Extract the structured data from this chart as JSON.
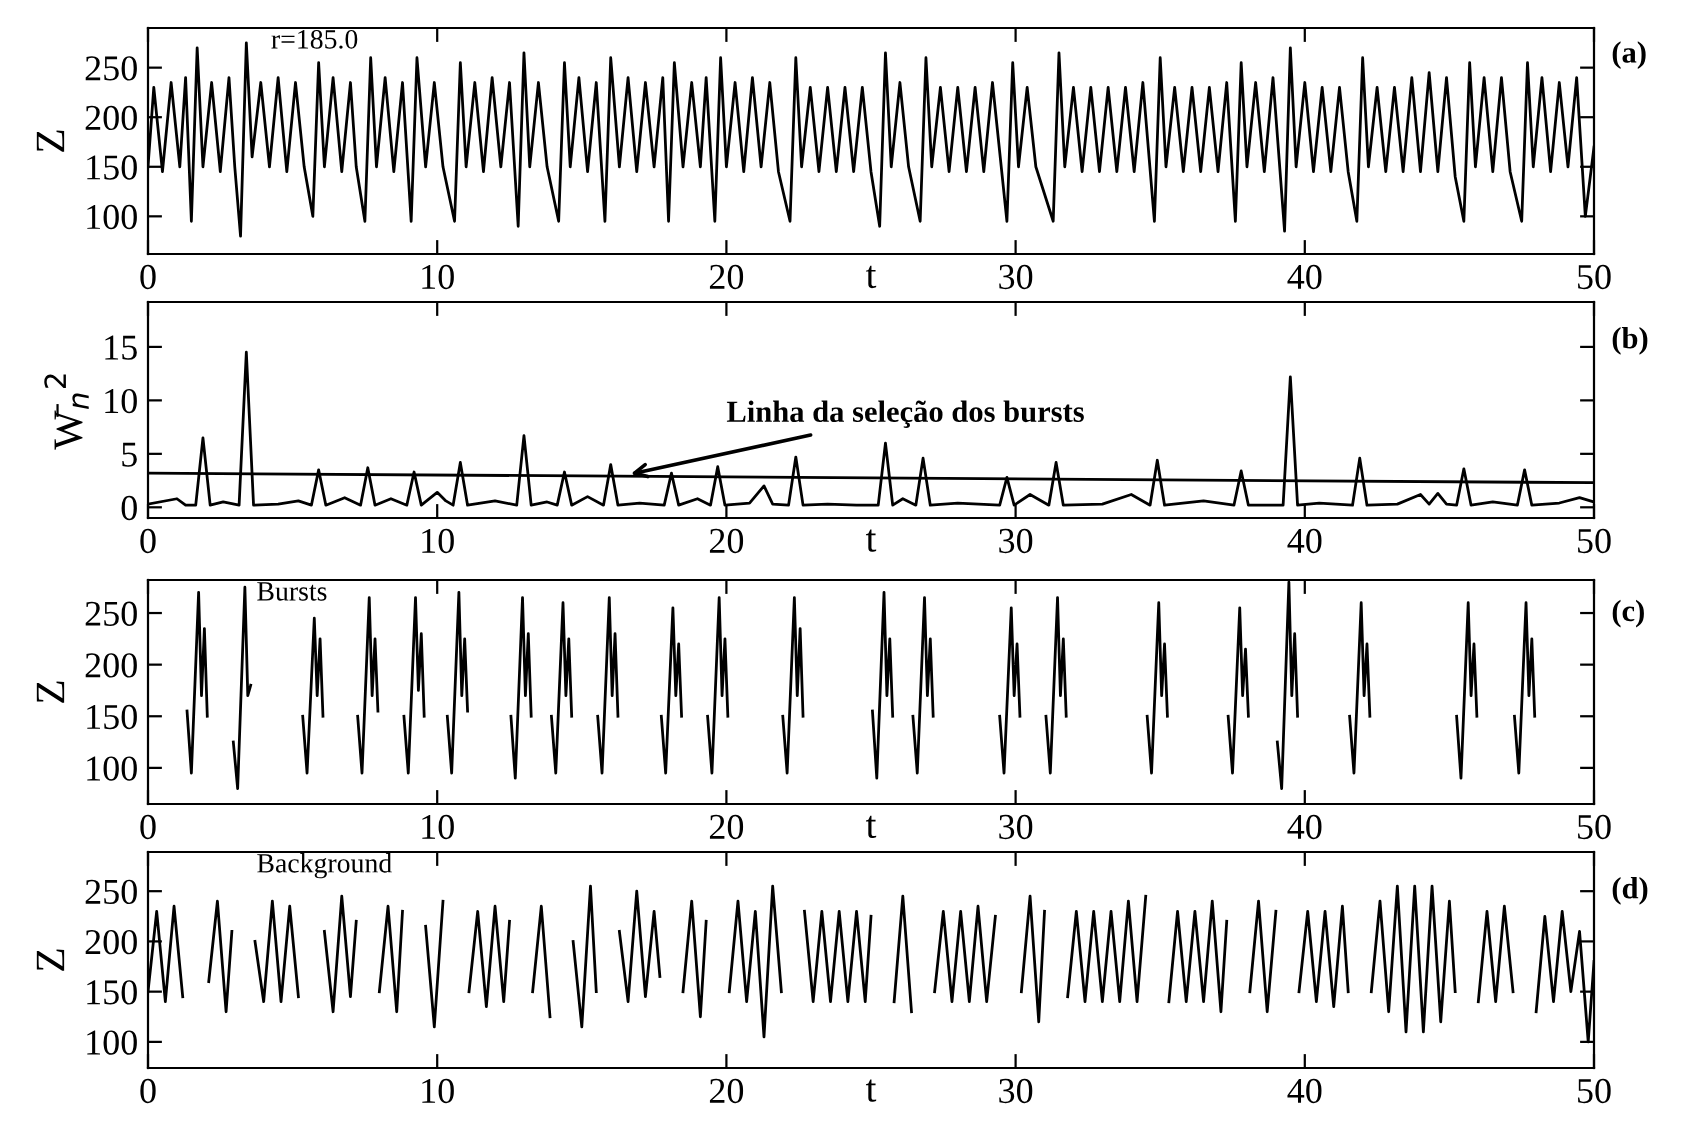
{
  "chart_data": [
    {
      "type": "line",
      "ylabel": "Z",
      "xlabel": "t",
      "xlim": [
        0,
        50
      ],
      "xticks": [
        0,
        10,
        20,
        30,
        40,
        50
      ],
      "ylim": [
        62,
        290
      ],
      "yticks": [
        100,
        150,
        200,
        250
      ],
      "annotations": [
        "r=185.0",
        "(a)"
      ],
      "series": [
        {
          "color": "#000000",
          "x": [
            0,
            0.2,
            0.5,
            0.8,
            1.1,
            1.3,
            1.5,
            1.7,
            1.9,
            2.2,
            2.5,
            2.8,
            3.0,
            3.2,
            3.4,
            3.6,
            3.9,
            4.2,
            4.5,
            4.8,
            5.1,
            5.4,
            5.7,
            5.9,
            6.1,
            6.4,
            6.7,
            7.0,
            7.2,
            7.5,
            7.7,
            7.9,
            8.2,
            8.5,
            8.8,
            9.1,
            9.3,
            9.6,
            9.9,
            10.2,
            10.6,
            10.8,
            11.0,
            11.3,
            11.6,
            11.9,
            12.2,
            12.5,
            12.8,
            13.0,
            13.2,
            13.5,
            13.8,
            14.2,
            14.4,
            14.6,
            14.9,
            15.2,
            15.5,
            15.8,
            16.0,
            16.3,
            16.6,
            16.9,
            17.2,
            17.5,
            17.8,
            18.0,
            18.2,
            18.5,
            18.8,
            19.1,
            19.3,
            19.6,
            19.8,
            20.0,
            20.3,
            20.6,
            20.9,
            21.2,
            21.5,
            21.8,
            22.2,
            22.4,
            22.6,
            22.9,
            23.2,
            23.5,
            23.8,
            24.1,
            24.4,
            24.7,
            25.0,
            25.3,
            25.5,
            25.7,
            26.0,
            26.3,
            26.7,
            26.9,
            27.1,
            27.4,
            27.7,
            28.0,
            28.3,
            28.6,
            28.9,
            29.2,
            29.7,
            29.9,
            30.1,
            30.4,
            30.7,
            31.3,
            31.5,
            31.7,
            32.0,
            32.3,
            32.6,
            32.9,
            33.2,
            33.5,
            33.8,
            34.1,
            34.4,
            34.8,
            35.0,
            35.2,
            35.5,
            35.8,
            36.1,
            36.4,
            36.7,
            37.0,
            37.3,
            37.6,
            37.8,
            38.0,
            38.3,
            38.6,
            38.9,
            39.3,
            39.5,
            39.7,
            40.0,
            40.3,
            40.6,
            40.9,
            41.2,
            41.5,
            41.8,
            42.0,
            42.2,
            42.5,
            42.8,
            43.1,
            43.4,
            43.7,
            44.0,
            44.3,
            44.6,
            44.9,
            45.2,
            45.5,
            45.7,
            45.9,
            46.2,
            46.5,
            46.8,
            47.1,
            47.5,
            47.7,
            47.9,
            48.2,
            48.5,
            48.8,
            49.1,
            49.4,
            49.7,
            50
          ],
          "values": [
            150,
            230,
            145,
            235,
            150,
            240,
            95,
            270,
            150,
            235,
            145,
            240,
            150,
            80,
            275,
            160,
            235,
            150,
            240,
            145,
            235,
            150,
            100,
            255,
            150,
            240,
            145,
            235,
            150,
            95,
            260,
            150,
            240,
            145,
            235,
            95,
            260,
            150,
            235,
            150,
            95,
            255,
            150,
            235,
            145,
            240,
            150,
            235,
            90,
            265,
            150,
            235,
            150,
            95,
            255,
            150,
            240,
            145,
            235,
            95,
            260,
            150,
            240,
            145,
            235,
            150,
            240,
            95,
            255,
            150,
            235,
            150,
            240,
            95,
            260,
            150,
            235,
            145,
            240,
            150,
            235,
            145,
            95,
            260,
            150,
            230,
            145,
            230,
            145,
            230,
            145,
            230,
            145,
            90,
            265,
            150,
            235,
            150,
            95,
            260,
            150,
            230,
            145,
            230,
            145,
            230,
            145,
            235,
            95,
            255,
            150,
            230,
            150,
            95,
            265,
            150,
            230,
            145,
            230,
            145,
            230,
            145,
            230,
            145,
            235,
            95,
            260,
            150,
            230,
            145,
            230,
            145,
            230,
            145,
            235,
            95,
            255,
            150,
            235,
            145,
            240,
            85,
            270,
            150,
            235,
            145,
            230,
            145,
            230,
            145,
            95,
            260,
            150,
            230,
            145,
            230,
            145,
            240,
            145,
            245,
            145,
            240,
            140,
            95,
            255,
            150,
            240,
            145,
            240,
            145,
            95,
            255,
            150,
            240,
            145,
            235,
            150,
            240,
            100,
            170
          ]
        }
      ]
    },
    {
      "type": "line",
      "ylabel": "W̄$_{n}$$^{2}$",
      "xlabel": "t",
      "xlim": [
        0,
        50
      ],
      "xticks": [
        0,
        10,
        20,
        30,
        40,
        50
      ],
      "ylim": [
        -1,
        19.2
      ],
      "yticks": [
        0,
        5,
        10,
        15
      ],
      "annotations": [
        {
          "text": "Linha da seleção dos bursts",
          "x": 16.5,
          "y": 3.0
        },
        "(b)"
      ],
      "series": [
        {
          "color": "#000000",
          "x": [
            0,
            1.0,
            1.3,
            1.65,
            1.9,
            2.15,
            2.6,
            3.15,
            3.4,
            3.65,
            4.5,
            5.2,
            5.65,
            5.9,
            6.15,
            6.8,
            7.35,
            7.6,
            7.85,
            8.4,
            8.95,
            9.2,
            9.45,
            10.0,
            10.3,
            10.55,
            10.8,
            11.05,
            12.0,
            12.75,
            13.0,
            13.25,
            13.8,
            14.15,
            14.4,
            14.65,
            15.2,
            15.75,
            16.0,
            16.25,
            17.0,
            17.85,
            18.1,
            18.35,
            19.0,
            19.45,
            19.7,
            19.95,
            20.8,
            21.3,
            21.6,
            22.15,
            22.4,
            22.65,
            23.5,
            24.5,
            25.25,
            25.5,
            25.75,
            26.1,
            26.55,
            26.8,
            27.05,
            28.0,
            29.45,
            29.7,
            29.95,
            30.5,
            31.15,
            31.4,
            31.65,
            33.0,
            34.0,
            34.65,
            34.9,
            35.15,
            36.5,
            37.55,
            37.8,
            38.05,
            39.25,
            39.5,
            39.75,
            40.5,
            41.65,
            41.9,
            42.15,
            43.2,
            44.0,
            44.3,
            44.6,
            44.9,
            45.25,
            45.5,
            45.75,
            46.5,
            47.35,
            47.6,
            47.85,
            48.8,
            49.5,
            50
          ],
          "values": [
            0.3,
            0.8,
            0.2,
            0.2,
            6.5,
            0.2,
            0.5,
            0.2,
            14.5,
            0.2,
            0.3,
            0.6,
            0.2,
            3.5,
            0.2,
            0.9,
            0.2,
            3.7,
            0.2,
            0.8,
            0.2,
            3.3,
            0.2,
            1.4,
            0.6,
            0.2,
            4.2,
            0.2,
            0.6,
            0.2,
            6.7,
            0.2,
            0.5,
            0.2,
            3.3,
            0.2,
            1.0,
            0.2,
            4.0,
            0.2,
            0.4,
            0.2,
            3.2,
            0.2,
            0.8,
            0.2,
            3.8,
            0.2,
            0.4,
            2.0,
            0.3,
            0.2,
            4.7,
            0.2,
            0.3,
            0.2,
            0.2,
            6.0,
            0.2,
            0.8,
            0.2,
            4.6,
            0.2,
            0.4,
            0.2,
            2.8,
            0.2,
            1.2,
            0.2,
            4.2,
            0.2,
            0.3,
            1.2,
            0.2,
            4.4,
            0.2,
            0.6,
            0.2,
            3.4,
            0.2,
            0.2,
            12.2,
            0.2,
            0.4,
            0.2,
            4.6,
            0.2,
            0.3,
            1.2,
            0.3,
            1.3,
            0.3,
            0.2,
            3.6,
            0.2,
            0.5,
            0.2,
            3.5,
            0.2,
            0.4,
            0.9,
            0.5
          ]
        },
        {
          "color": "#000000",
          "x": [
            0,
            50
          ],
          "values": [
            3.2,
            2.3
          ]
        }
      ]
    },
    {
      "type": "line",
      "ylabel": "Z",
      "xlabel": "t",
      "xlim": [
        0,
        50
      ],
      "xticks": [
        0,
        10,
        20,
        30,
        40,
        50
      ],
      "ylim": [
        65,
        282
      ],
      "yticks": [
        100,
        150,
        200,
        250
      ],
      "annotations": [
        "Bursts",
        "(c)"
      ],
      "series": [
        {
          "color": "#000000",
          "x": [
            1.35,
            1.5,
            1.75,
            1.85,
            1.95,
            2.05,
            2.1,
            2.95,
            3.1,
            3.35,
            3.45,
            3.55,
            3.6,
            5.35,
            5.5,
            5.75,
            5.85,
            5.95,
            6.05,
            6.1,
            7.25,
            7.4,
            7.65,
            7.75,
            7.85,
            7.95,
            8.0,
            8.85,
            9.0,
            9.25,
            9.35,
            9.45,
            9.55,
            9.6,
            10.35,
            10.5,
            10.75,
            10.85,
            10.95,
            11.05,
            11.1,
            12.55,
            12.7,
            12.95,
            13.05,
            13.15,
            13.25,
            13.3,
            13.95,
            14.1,
            14.35,
            14.45,
            14.55,
            14.65,
            14.7,
            15.55,
            15.7,
            15.95,
            16.05,
            16.15,
            16.25,
            16.3,
            17.75,
            17.9,
            18.15,
            18.25,
            18.35,
            18.45,
            18.5,
            19.35,
            19.5,
            19.75,
            19.85,
            19.95,
            20.05,
            20.1,
            21.95,
            22.1,
            22.35,
            22.45,
            22.55,
            22.65,
            22.7,
            25.05,
            25.2,
            25.45,
            25.55,
            25.65,
            25.75,
            25.8,
            26.45,
            26.6,
            26.85,
            26.95,
            27.05,
            27.15,
            27.2,
            29.45,
            29.6,
            29.85,
            29.95,
            30.05,
            30.15,
            30.2,
            31.05,
            31.2,
            31.45,
            31.55,
            31.65,
            31.75,
            31.8,
            34.55,
            34.7,
            34.95,
            35.05,
            35.15,
            35.25,
            35.3,
            37.35,
            37.5,
            37.75,
            37.85,
            37.95,
            38.05,
            38.1,
            39.05,
            39.2,
            39.45,
            39.55,
            39.65,
            39.75,
            39.8,
            41.55,
            41.7,
            41.95,
            42.05,
            42.15,
            42.25,
            42.3,
            45.25,
            45.4,
            45.65,
            45.75,
            45.85,
            45.95,
            46.0,
            47.25,
            47.4,
            47.65,
            47.75,
            47.85,
            47.95
          ],
          "values": [
            155,
            95,
            270,
            170,
            235,
            150,
            null,
            125,
            80,
            275,
            170,
            180,
            null,
            150,
            95,
            245,
            170,
            225,
            150,
            null,
            150,
            95,
            265,
            170,
            225,
            155,
            null,
            150,
            95,
            265,
            175,
            230,
            150,
            null,
            150,
            95,
            270,
            170,
            225,
            155,
            null,
            150,
            90,
            265,
            170,
            230,
            150,
            null,
            150,
            95,
            260,
            170,
            225,
            150,
            null,
            150,
            95,
            265,
            170,
            230,
            150,
            null,
            150,
            95,
            255,
            170,
            220,
            150,
            null,
            150,
            95,
            265,
            170,
            225,
            150,
            null,
            150,
            95,
            265,
            170,
            235,
            150,
            null,
            155,
            90,
            270,
            170,
            225,
            150,
            null,
            150,
            95,
            265,
            170,
            225,
            150,
            null,
            150,
            95,
            255,
            170,
            220,
            150,
            null,
            150,
            95,
            265,
            170,
            225,
            150,
            null,
            150,
            95,
            260,
            170,
            220,
            150,
            null,
            150,
            95,
            255,
            170,
            215,
            150,
            null,
            125,
            80,
            280,
            170,
            230,
            150,
            null,
            150,
            95,
            260,
            170,
            220,
            150,
            null,
            150,
            90,
            260,
            170,
            220,
            150,
            null,
            150,
            95,
            260,
            170,
            225,
            150
          ]
        }
      ]
    },
    {
      "type": "line",
      "ylabel": "Z",
      "xlabel": "t",
      "xlim": [
        0,
        50
      ],
      "xticks": [
        0,
        10,
        20,
        30,
        40,
        50
      ],
      "ylim": [
        74,
        289
      ],
      "yticks": [
        100,
        150,
        200,
        250
      ],
      "annotations": [
        "Background",
        "(d)"
      ],
      "series": [
        {
          "color": "#000000",
          "x": [
            0,
            0.3,
            0.6,
            0.9,
            1.2,
            1.35,
            2.1,
            2.4,
            2.7,
            2.9,
            3.0,
            3.7,
            4.0,
            4.3,
            4.6,
            4.9,
            5.2,
            5.35,
            6.1,
            6.4,
            6.7,
            7.0,
            7.2,
            7.3,
            8.0,
            8.3,
            8.6,
            8.8,
            8.9,
            9.6,
            9.9,
            10.2,
            10.4,
            11.1,
            11.4,
            11.7,
            12.0,
            12.3,
            12.5,
            12.6,
            13.3,
            13.6,
            13.9,
            14.0,
            14.7,
            15.0,
            15.3,
            15.5,
            15.6,
            16.3,
            16.6,
            16.9,
            17.2,
            17.5,
            17.7,
            17.8,
            18.5,
            18.8,
            19.1,
            19.3,
            19.4,
            20.1,
            20.4,
            20.7,
            21.0,
            21.3,
            21.6,
            21.9,
            22.0,
            22.7,
            23.0,
            23.3,
            23.6,
            23.9,
            24.2,
            24.5,
            24.8,
            25.0,
            25.1,
            25.8,
            26.1,
            26.4,
            26.5,
            27.2,
            27.5,
            27.8,
            28.1,
            28.4,
            28.7,
            29.0,
            29.3,
            29.45,
            30.2,
            30.5,
            30.8,
            31.0,
            31.1,
            31.8,
            32.1,
            32.4,
            32.7,
            33.0,
            33.3,
            33.6,
            33.9,
            34.2,
            34.5,
            34.6,
            35.3,
            35.6,
            35.9,
            36.2,
            36.5,
            36.8,
            37.1,
            37.3,
            37.4,
            38.1,
            38.4,
            38.7,
            39.0,
            39.1,
            39.8,
            40.1,
            40.4,
            40.7,
            41.0,
            41.3,
            41.5,
            41.6,
            42.3,
            42.6,
            42.9,
            43.2,
            43.5,
            43.8,
            44.1,
            44.4,
            44.7,
            45.0,
            45.2,
            45.3,
            46.0,
            46.3,
            46.6,
            46.9,
            47.2,
            47.3,
            48.0,
            48.3,
            48.6,
            48.9,
            49.2,
            49.5,
            49.8,
            50.0
          ],
          "values": [
            150,
            230,
            140,
            235,
            145,
            null,
            160,
            240,
            130,
            210,
            null,
            200,
            140,
            240,
            140,
            235,
            145,
            null,
            210,
            130,
            245,
            145,
            220,
            null,
            150,
            235,
            130,
            230,
            null,
            215,
            115,
            240,
            null,
            150,
            230,
            135,
            235,
            140,
            220,
            null,
            150,
            235,
            125,
            null,
            200,
            115,
            255,
            150,
            null,
            210,
            140,
            250,
            145,
            230,
            165,
            null,
            150,
            240,
            125,
            220,
            null,
            150,
            240,
            140,
            230,
            105,
            255,
            150,
            null,
            230,
            140,
            230,
            140,
            230,
            140,
            230,
            140,
            225,
            null,
            140,
            245,
            130,
            null,
            150,
            230,
            140,
            230,
            140,
            235,
            140,
            225,
            null,
            150,
            245,
            120,
            230,
            null,
            145,
            230,
            140,
            230,
            140,
            230,
            140,
            240,
            140,
            245,
            null,
            140,
            230,
            140,
            230,
            140,
            240,
            130,
            220,
            null,
            150,
            240,
            130,
            230,
            null,
            150,
            230,
            140,
            230,
            135,
            235,
            150,
            null,
            150,
            240,
            130,
            255,
            110,
            255,
            110,
            255,
            120,
            240,
            150,
            null,
            140,
            230,
            140,
            235,
            150,
            null,
            130,
            225,
            140,
            230,
            150,
            210,
            100,
            180
          ]
        }
      ]
    }
  ]
}
